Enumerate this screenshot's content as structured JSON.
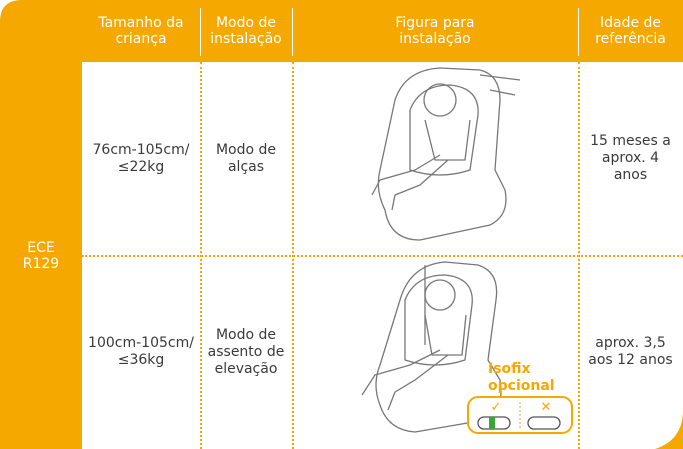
{
  "table": {
    "group_label": "ECE\nR129",
    "header": [
      "Tamanho da\ncriança",
      "Modo de\ninstalação",
      "Figura para\ninstalação",
      "Idade de\nreferência"
    ],
    "rows": [
      [
        "76cm-105cm/\n≤22kg",
        "Modo de\nalças",
        "15 meses a\naprox. 4\nanos"
      ],
      [
        "100cm-105cm/\n≤36kg",
        "Modo de\nassento de\nelevação",
        "aprox. 3,5\naos 12 anos"
      ]
    ],
    "isofix": {
      "label": "Isofix\nopcional",
      "yes": "✓",
      "no": "✕"
    }
  }
}
